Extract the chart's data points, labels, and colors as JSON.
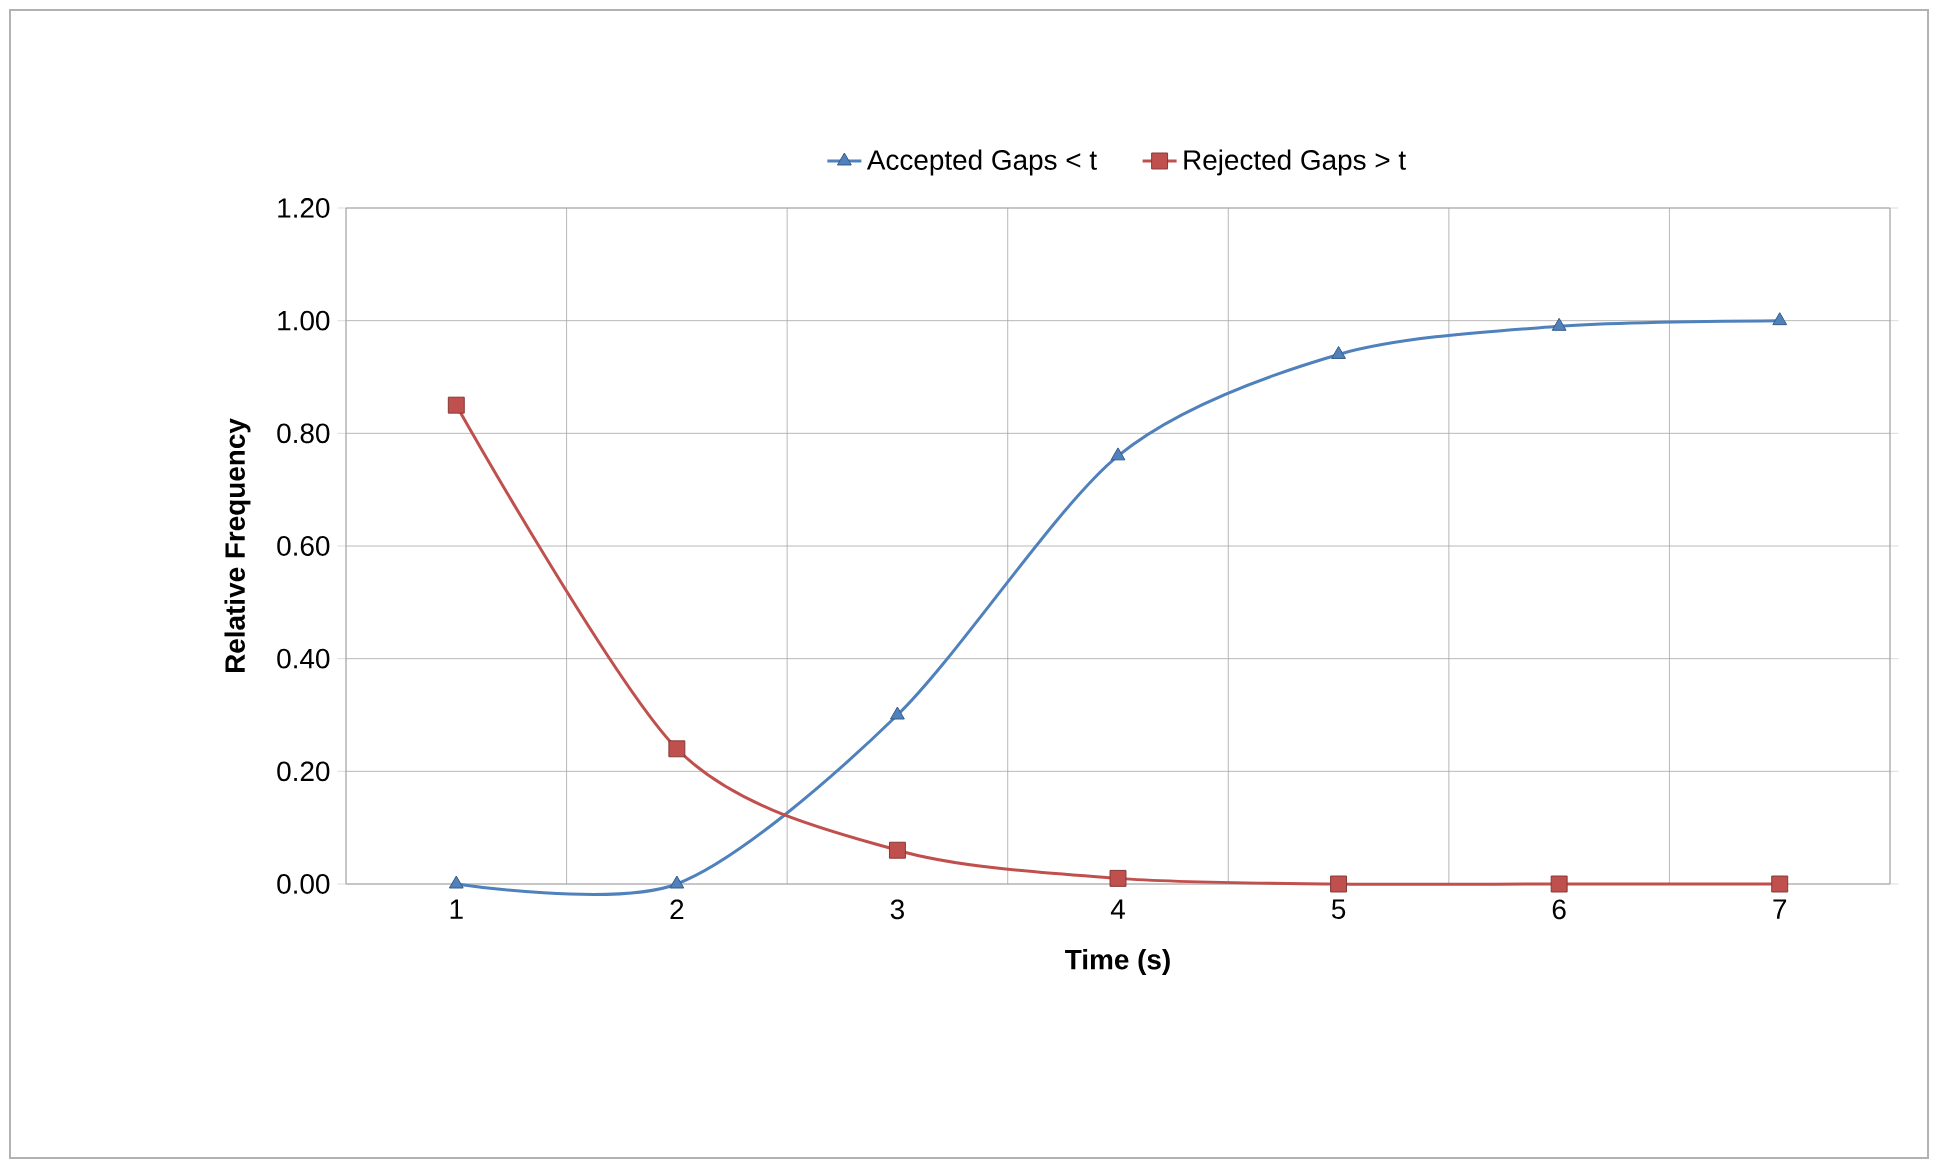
{
  "chart_data": {
    "type": "line",
    "xlabel": "Time (s)",
    "ylabel": "Relative Frequency",
    "categories": [
      "1",
      "2",
      "3",
      "4",
      "5",
      "6",
      "7"
    ],
    "series": [
      {
        "name": "Accepted Gaps < t",
        "color": "#4f81bd",
        "marker": "triangle",
        "values": [
          0,
          0,
          0.3,
          0.76,
          0.94,
          0.99,
          1.0
        ]
      },
      {
        "name": "Rejected Gaps > t",
        "color": "#c0504d",
        "marker": "square",
        "values": [
          0.85,
          0.24,
          0.06,
          0.01,
          0.0,
          0.0,
          0.0
        ]
      }
    ],
    "ylim": [
      0,
      1.2
    ],
    "yticks": [
      {
        "value": 0,
        "label": "0.00"
      },
      {
        "value": 0.2,
        "label": "0.20"
      },
      {
        "value": 0.4,
        "label": "0.40"
      },
      {
        "value": 0.6,
        "label": "0.60"
      },
      {
        "value": 0.8,
        "label": "0.80"
      },
      {
        "value": 1.0,
        "label": "1.00"
      },
      {
        "value": 1.2,
        "label": "1.20"
      }
    ],
    "grid": true,
    "legend": "top",
    "line_style": "solid"
  }
}
